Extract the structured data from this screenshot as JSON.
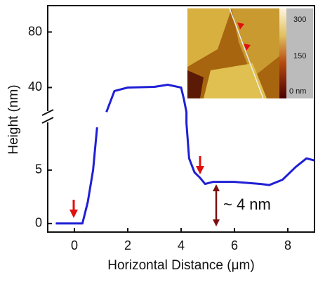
{
  "chart_data": {
    "type": "line",
    "xlabel": "Horizontal Distance (μm)",
    "ylabel": "Height (nm)",
    "annotation": "~ 4 nm",
    "inset_labels": [
      "300",
      "150",
      "0 nm"
    ],
    "xlim": [
      -1,
      9
    ],
    "xticks": [
      0,
      2,
      4,
      6,
      8
    ],
    "ylim": [
      -0.8,
      99
    ],
    "ybreak": [
      9.6,
      22
    ],
    "yticks": [
      0,
      5,
      40,
      80
    ],
    "series": [
      {
        "color": "#1f1fd6",
        "x": [
          -0.7,
          0.3,
          0.5,
          0.7,
          0.85,
          0.9,
          1.2,
          1.5,
          2,
          3,
          3.5,
          4,
          4.1,
          4.2,
          4.2,
          4.3,
          4.5,
          4.7,
          4.9,
          5.2,
          6,
          7,
          7.3,
          7.8,
          8.3,
          8.7,
          9
        ],
        "values": [
          0,
          0,
          2,
          5,
          9,
          null,
          22.3,
          37.5,
          40,
          40.5,
          42,
          40,
          32,
          22.3,
          9.4,
          6.1,
          4.8,
          4.3,
          3.7,
          3.9,
          3.9,
          3.7,
          3.6,
          4.1,
          5.3,
          6.1,
          5.9
        ]
      }
    ]
  }
}
